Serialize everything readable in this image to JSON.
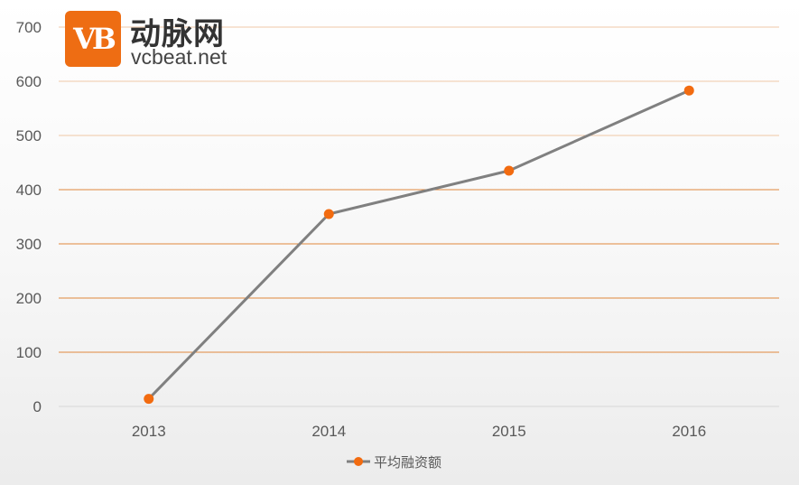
{
  "logo": {
    "mark_text": "VB",
    "name_cn": "动脉网",
    "domain": "vcbeat.net"
  },
  "colors": {
    "line": "#808080",
    "marker": "#f26b10",
    "grid": "#e0883d",
    "axis": "#d9d9d9",
    "brand": "#ee6d13"
  },
  "chart_data": {
    "type": "line",
    "categories": [
      "2013",
      "2014",
      "2015",
      "2016"
    ],
    "series": [
      {
        "name": "平均融资额",
        "values": [
          14,
          355,
          435,
          583
        ]
      }
    ],
    "ylim": [
      0,
      700
    ],
    "yticks": [
      0,
      100,
      200,
      300,
      400,
      500,
      600,
      700
    ],
    "grid": true,
    "legend": "bottom"
  }
}
